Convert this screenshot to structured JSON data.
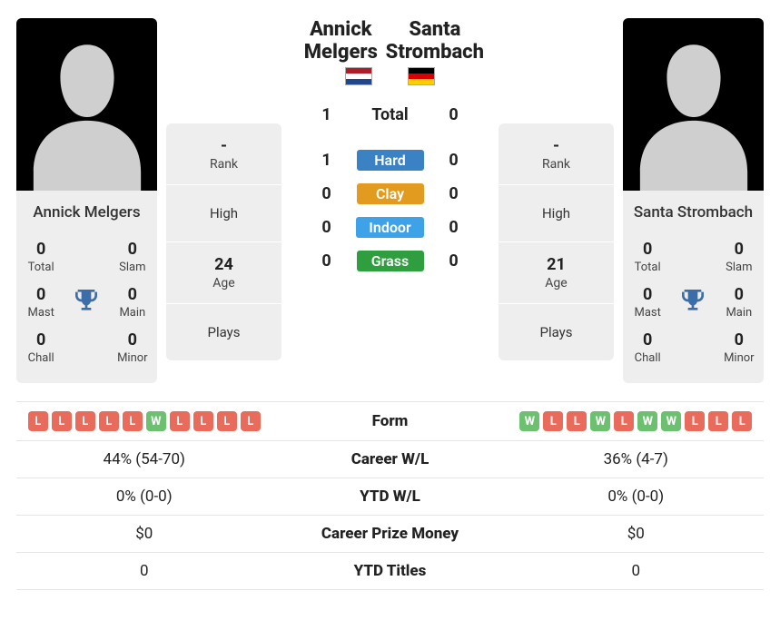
{
  "player1": {
    "name": "Annick Melgers",
    "flag": "nl",
    "trophies": {
      "total": "0",
      "slam": "0",
      "mast": "0",
      "main": "0",
      "chall": "0",
      "minor": "0"
    },
    "rank": {
      "rank": "-",
      "high": "",
      "age": "24",
      "plays": ""
    }
  },
  "player2": {
    "name": "Santa Strombach",
    "flag": "de",
    "trophies": {
      "total": "0",
      "slam": "0",
      "mast": "0",
      "main": "0",
      "chall": "0",
      "minor": "0"
    },
    "rank": {
      "rank": "-",
      "high": "",
      "age": "21",
      "plays": ""
    }
  },
  "trophy_labels": {
    "total": "Total",
    "slam": "Slam",
    "mast": "Mast",
    "main": "Main",
    "chall": "Chall",
    "minor": "Minor"
  },
  "rank_labels": {
    "rank": "Rank",
    "high": "High",
    "age": "Age",
    "plays": "Plays"
  },
  "h2h": {
    "total_label": "Total",
    "p1_total": "1",
    "p2_total": "0",
    "surfaces": {
      "hard": {
        "label": "Hard",
        "color": "#3b82c4",
        "p1": "1",
        "p2": "0"
      },
      "clay": {
        "label": "Clay",
        "color": "#e29a1f",
        "p1": "0",
        "p2": "0"
      },
      "indoor": {
        "label": "Indoor",
        "color": "#3ea2e8",
        "p1": "0",
        "p2": "0"
      },
      "grass": {
        "label": "Grass",
        "color": "#2e9e3f",
        "p1": "0",
        "p2": "0"
      }
    }
  },
  "stats": {
    "form_label": "Form",
    "p1_form": [
      "L",
      "L",
      "L",
      "L",
      "L",
      "W",
      "L",
      "L",
      "L",
      "L"
    ],
    "p2_form": [
      "W",
      "L",
      "L",
      "W",
      "L",
      "W",
      "W",
      "L",
      "L",
      "L"
    ],
    "career_wl": {
      "label": "Career W/L",
      "p1": "44% (54-70)",
      "p2": "36% (4-7)"
    },
    "ytd_wl": {
      "label": "YTD W/L",
      "p1": "0% (0-0)",
      "p2": "0% (0-0)"
    },
    "prize": {
      "label": "Career Prize Money",
      "p1": "$0",
      "p2": "$0"
    },
    "ytd_titles": {
      "label": "YTD Titles",
      "p1": "0",
      "p2": "0"
    }
  },
  "colors": {
    "win": "#6cc070",
    "loss": "#e86b5c",
    "card_bg": "#eeeeee",
    "trophy": "#3b6ea8"
  }
}
